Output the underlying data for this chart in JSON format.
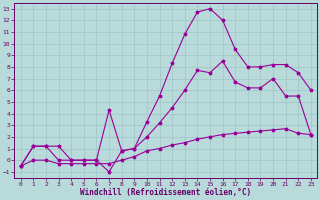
{
  "xlabel": "Windchill (Refroidissement éolien,°C)",
  "bg_color": "#b8dada",
  "line_color": "#990099",
  "xlim": [
    -0.5,
    23.5
  ],
  "ylim": [
    -1.5,
    13.5
  ],
  "xticks": [
    0,
    1,
    2,
    3,
    4,
    5,
    6,
    7,
    8,
    9,
    10,
    11,
    12,
    13,
    14,
    15,
    16,
    17,
    18,
    19,
    20,
    21,
    22,
    23
  ],
  "yticks": [
    -1,
    0,
    1,
    2,
    3,
    4,
    5,
    6,
    7,
    8,
    9,
    10,
    11,
    12,
    13
  ],
  "line_top_x": [
    0,
    1,
    2,
    3,
    4,
    5,
    6,
    7,
    8,
    9,
    10,
    11,
    12,
    13,
    14,
    15,
    16,
    17,
    18,
    19,
    20,
    21,
    22,
    23
  ],
  "line_top_y": [
    -0.5,
    1.2,
    1.2,
    1.2,
    0.0,
    0.0,
    0.0,
    4.3,
    0.8,
    1.0,
    3.3,
    5.5,
    8.3,
    10.8,
    12.7,
    13.0,
    12.0,
    9.5,
    8.0,
    8.0,
    8.2,
    8.2,
    7.5,
    6.0
  ],
  "line_mid_x": [
    0,
    1,
    2,
    3,
    4,
    5,
    6,
    7,
    8,
    9,
    10,
    11,
    12,
    13,
    14,
    15,
    16,
    17,
    18,
    19,
    20,
    21,
    22,
    23
  ],
  "line_mid_y": [
    -0.5,
    1.2,
    1.2,
    0.0,
    0.0,
    0.0,
    0.0,
    -1.0,
    0.8,
    1.0,
    2.0,
    3.2,
    4.5,
    6.0,
    7.7,
    7.5,
    8.5,
    6.7,
    6.2,
    6.2,
    7.0,
    5.5,
    5.5,
    2.2
  ],
  "line_bot_x": [
    0,
    1,
    2,
    3,
    4,
    5,
    6,
    7,
    8,
    9,
    10,
    11,
    12,
    13,
    14,
    15,
    16,
    17,
    18,
    19,
    20,
    21,
    22,
    23
  ],
  "line_bot_y": [
    -0.5,
    0.0,
    0.0,
    -0.3,
    -0.3,
    -0.3,
    -0.3,
    -0.3,
    0.0,
    0.3,
    0.8,
    1.0,
    1.3,
    1.5,
    1.8,
    2.0,
    2.2,
    2.3,
    2.4,
    2.5,
    2.6,
    2.7,
    2.3,
    2.2
  ]
}
